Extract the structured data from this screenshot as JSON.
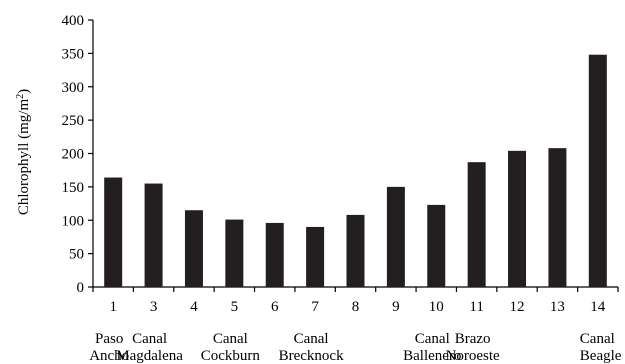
{
  "chart_data": {
    "type": "bar",
    "categories": [
      "1",
      "3",
      "4",
      "5",
      "6",
      "7",
      "8",
      "9",
      "10",
      "11",
      "12",
      "13",
      "14"
    ],
    "values": [
      164,
      155,
      115,
      101,
      96,
      90,
      108,
      150,
      123,
      187,
      204,
      208,
      348
    ],
    "ylabel_main": "Chlorophyll (mg/m",
    "ylabel_sup": "2",
    "ylabel_close": ")",
    "ylim": [
      0,
      400
    ],
    "yticks": [
      0,
      50,
      100,
      150,
      200,
      250,
      300,
      350,
      400
    ],
    "bar_color": "#231f20",
    "grid": false,
    "regions": [
      {
        "line1": "Paso",
        "line2": "Ancho",
        "category": "1"
      },
      {
        "line1": "Canal",
        "line2": "Magdalena",
        "category": "3"
      },
      {
        "line1": "Canal",
        "line2": "Cockburn",
        "category": "5"
      },
      {
        "line1": "Canal",
        "line2": "Brecknock",
        "category": "7"
      },
      {
        "line1": "Canal",
        "line2": "Ballenero",
        "category": "10"
      },
      {
        "line1": "Brazo",
        "line2": "Noroeste",
        "category": "11"
      },
      {
        "line1": "Canal",
        "line2": "Beagle",
        "category": "14"
      }
    ]
  }
}
